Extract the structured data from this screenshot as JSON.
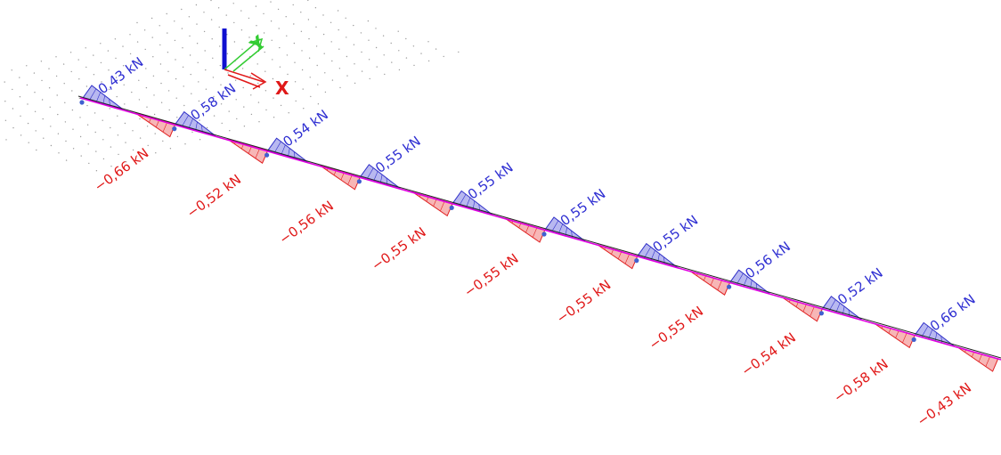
{
  "diagram": {
    "support_count": 10,
    "positive_unit": "kN",
    "positive_values": [
      "0,43 kN",
      "0,58 kN",
      "0,54 kN",
      "0,55 kN",
      "0,55 kN",
      "0,55 kN",
      "0,55 kN",
      "0,56 kN",
      "0,52 kN",
      "0,66 kN"
    ],
    "negative_values": [
      "-0,66 kN",
      "-0,52 kN",
      "-0,56 kN",
      "-0,55 kN",
      "-0,55 kN",
      "-0,55 kN",
      "-0,55 kN",
      "-0,54 kN",
      "-0,58 kN",
      "-0,43 kN"
    ]
  },
  "axes": {
    "x_label": "X",
    "y_label": "Y"
  },
  "colors": {
    "positive_fill": "#b8b8f0",
    "positive_stroke": "#3030c8",
    "negative_fill": "#f7b6b6",
    "negative_stroke": "#e02020",
    "beam": "#e000e0",
    "support": "#4060d0",
    "axis_x": "#e01818",
    "axis_y": "#33cc33",
    "axis_z": "#1010d0"
  }
}
